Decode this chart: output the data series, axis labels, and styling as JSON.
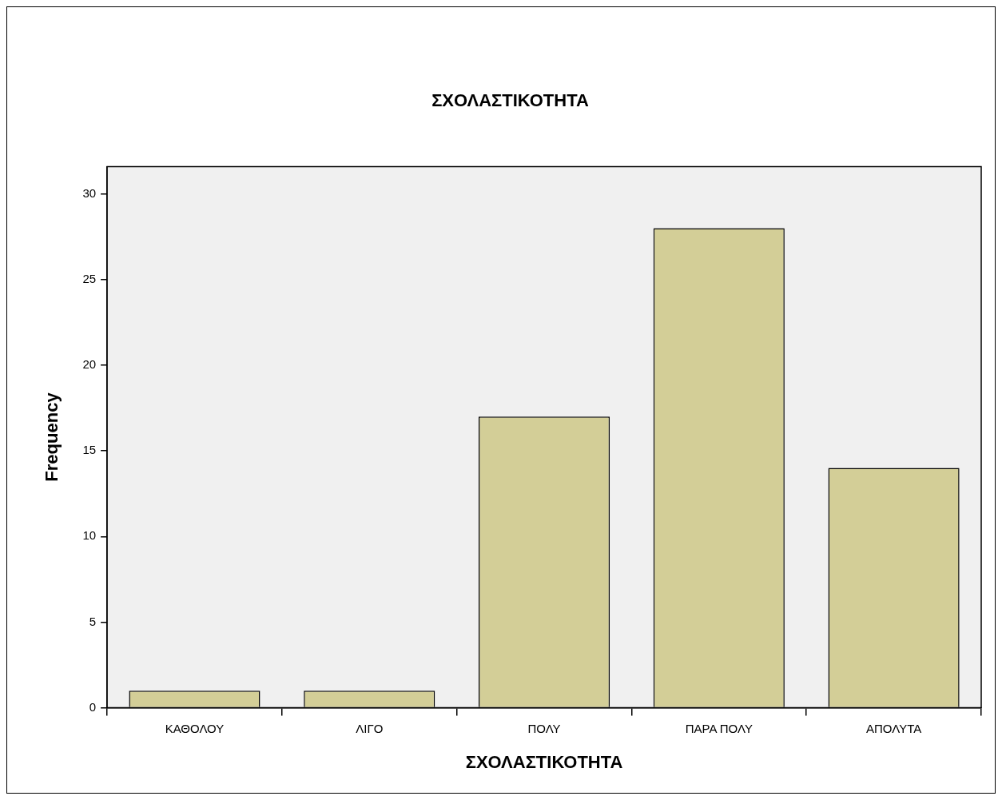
{
  "chart_data": {
    "type": "bar",
    "title": "ΣΧΟΛΑΣΤΙΚΟΤΗΤΑ",
    "xlabel": "ΣΧΟΛΑΣΤΙΚΟΤΗΤΑ",
    "ylabel": "Frequency",
    "categories": [
      "ΚΑΘΟΛΟΥ",
      "ΛΙΓΟ",
      "ΠΟΛΥ",
      "ΠΑΡΑ ΠΟΛΥ",
      "ΑΠΟΛΥΤΑ"
    ],
    "values": [
      1,
      1,
      17,
      28,
      14
    ],
    "color": "#d3ce97",
    "ylim": [
      0,
      31.6
    ],
    "yticks": [
      0,
      5,
      10,
      15,
      20,
      25,
      30
    ],
    "grid": false,
    "legend": false
  }
}
